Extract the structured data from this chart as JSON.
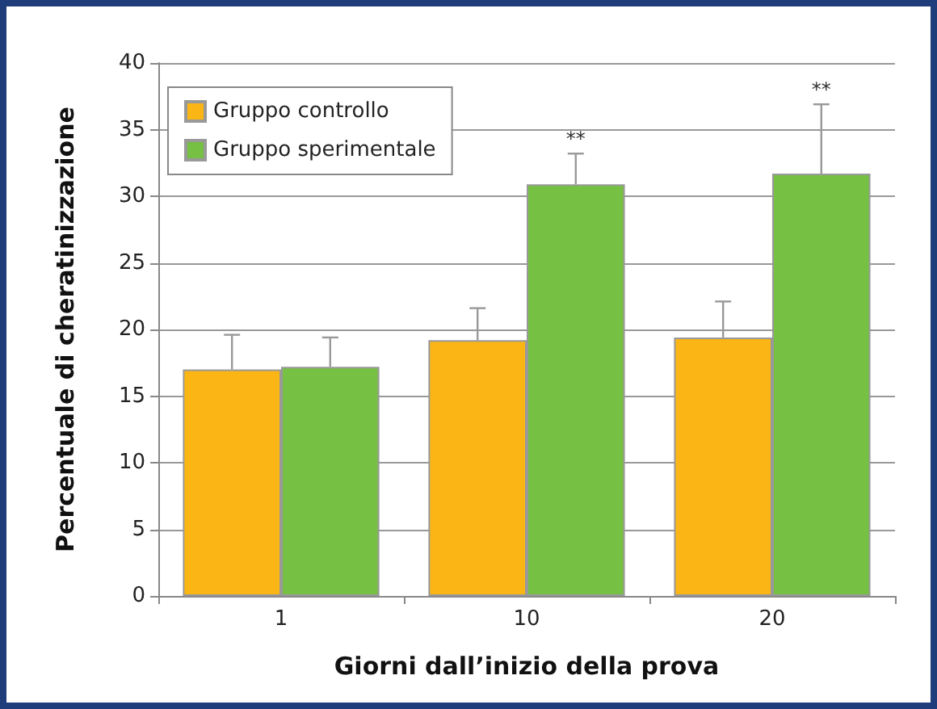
{
  "chart_data": {
    "type": "bar",
    "xlabel": "Giorni dall’inizio della prova",
    "ylabel": "Percentuale di cheratinizzazione",
    "categories": [
      "1",
      "10",
      "20"
    ],
    "series": [
      {
        "name": "Gruppo controllo",
        "color": "#fbb615",
        "values": [
          17.0,
          19.2,
          19.4
        ],
        "errors": [
          [
            17.0,
            19.6
          ],
          [
            19.2,
            21.6
          ],
          [
            19.4,
            22.1
          ]
        ]
      },
      {
        "name": "Gruppo sperimentale",
        "color": "#76c043",
        "values": [
          17.2,
          30.9,
          31.7
        ],
        "errors": [
          [
            17.2,
            19.4
          ],
          [
            30.9,
            33.2
          ],
          [
            31.7,
            36.9
          ]
        ]
      }
    ],
    "annotations": [
      "**",
      "**"
    ],
    "ylim": [
      0,
      40
    ],
    "yticks": [
      0,
      5,
      10,
      15,
      20,
      25,
      30,
      35,
      40
    ],
    "grid": "y",
    "legend": "top left"
  }
}
